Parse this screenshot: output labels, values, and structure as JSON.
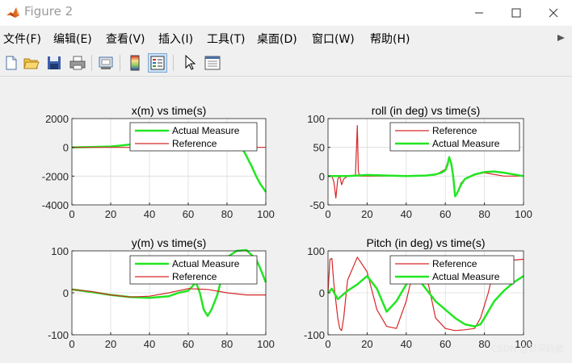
{
  "window": {
    "title": "Figure 2"
  },
  "menu": [
    "文件(F)",
    "编辑(E)",
    "查看(V)",
    "插入(I)",
    "工具(T)",
    "桌面(D)",
    "窗口(W)",
    "帮助(H)"
  ],
  "toolbar": {
    "icons": [
      "new-figure-icon",
      "open-file-icon",
      "save-icon",
      "print-icon",
      "print-preview-icon",
      "colorbar-icon",
      "legend-icon",
      "pointer-icon",
      "property-inspector-icon"
    ],
    "active": "legend-icon"
  },
  "colors": {
    "actual": "#22e622",
    "reference": "#d62728",
    "axes_bg": "#ffffff",
    "grid": "#dcdcdc"
  },
  "watermark": "CSDN @贝深码侬",
  "chart_data": [
    {
      "type": "line",
      "title": "x(m) vs time(s)",
      "xlim": [
        0,
        100
      ],
      "ylim": [
        -4000,
        2000
      ],
      "xticks": [
        0,
        20,
        40,
        60,
        80,
        100
      ],
      "yticks": [
        -4000,
        -2000,
        0,
        2000
      ],
      "grid": true,
      "legend_position": "top-right",
      "series": [
        {
          "name": "Actual Measure",
          "color": "#22e622",
          "width": 2.5,
          "x": [
            0,
            10,
            20,
            25,
            30,
            35,
            40,
            50,
            60,
            70,
            80,
            85,
            88,
            90,
            93,
            95,
            97,
            100
          ],
          "y": [
            0,
            20,
            60,
            120,
            200,
            160,
            80,
            20,
            0,
            0,
            0,
            0,
            -100,
            -600,
            -1400,
            -2000,
            -2500,
            -3100
          ]
        },
        {
          "name": "Reference",
          "color": "#d62728",
          "width": 1.2,
          "x": [
            0,
            20,
            40,
            60,
            80,
            100
          ],
          "y": [
            0,
            0,
            0,
            0,
            0,
            0
          ]
        }
      ]
    },
    {
      "type": "line",
      "title": "roll (in deg) vs time(s)",
      "xlim": [
        0,
        100
      ],
      "ylim": [
        -50,
        100
      ],
      "xticks": [
        0,
        20,
        40,
        60,
        80,
        100
      ],
      "yticks": [
        -50,
        0,
        50,
        100
      ],
      "grid": true,
      "legend_position": "top-right",
      "series": [
        {
          "name": "Reference",
          "color": "#d62728",
          "width": 1.2,
          "x": [
            0,
            2,
            3,
            4,
            5,
            6,
            7,
            8,
            10,
            14,
            15,
            15.5,
            16,
            20,
            40,
            55,
            60,
            61,
            62,
            63,
            64,
            65,
            66,
            68,
            70,
            75,
            80,
            90,
            100
          ],
          "y": [
            0,
            0,
            -10,
            -38,
            -5,
            0,
            -15,
            -5,
            0,
            0,
            88,
            10,
            0,
            0,
            0,
            2,
            12,
            22,
            30,
            25,
            0,
            -35,
            -30,
            -12,
            -5,
            2,
            6,
            0,
            0
          ]
        },
        {
          "name": "Actual Measure",
          "color": "#22e622",
          "width": 2.5,
          "x": [
            0,
            5,
            10,
            15,
            20,
            30,
            40,
            50,
            55,
            58,
            60,
            61,
            62,
            63,
            64,
            65,
            66,
            68,
            70,
            75,
            80,
            85,
            90,
            95,
            100
          ],
          "y": [
            0,
            0,
            0,
            1,
            2,
            1,
            0,
            1,
            3,
            6,
            10,
            18,
            33,
            22,
            0,
            -35,
            -30,
            -15,
            -5,
            3,
            7,
            8,
            6,
            3,
            0
          ]
        }
      ]
    },
    {
      "type": "line",
      "title": "y(m) vs time(s)",
      "xlim": [
        0,
        100
      ],
      "ylim": [
        -100,
        100
      ],
      "xticks": [
        0,
        20,
        40,
        60,
        80,
        100
      ],
      "yticks": [
        -100,
        0,
        100
      ],
      "grid": true,
      "legend_position": "top-right",
      "series": [
        {
          "name": "Actual Measure",
          "color": "#22e622",
          "width": 2.5,
          "x": [
            0,
            10,
            20,
            30,
            40,
            50,
            55,
            60,
            62,
            64,
            66,
            68,
            70,
            72,
            75,
            78,
            80,
            85,
            90,
            95,
            97,
            100
          ],
          "y": [
            8,
            2,
            -5,
            -10,
            -12,
            -8,
            0,
            5,
            15,
            25,
            0,
            -40,
            -55,
            -40,
            -5,
            50,
            85,
            100,
            102,
            80,
            60,
            25
          ]
        },
        {
          "name": "Reference",
          "color": "#d62728",
          "width": 1.2,
          "x": [
            0,
            10,
            20,
            30,
            40,
            50,
            60,
            70,
            80,
            90,
            100
          ],
          "y": [
            8,
            3,
            -5,
            -10,
            -8,
            0,
            10,
            8,
            0,
            -5,
            -5
          ]
        }
      ]
    },
    {
      "type": "line",
      "title": "Pitch (in deg) vs time(s)",
      "xlim": [
        0,
        100
      ],
      "ylim": [
        -100,
        100
      ],
      "xticks": [
        0,
        20,
        40,
        60,
        80,
        100
      ],
      "yticks": [
        -100,
        0,
        100
      ],
      "grid": true,
      "legend_position": "top-right",
      "series": [
        {
          "name": "Reference",
          "color": "#d62728",
          "width": 1.2,
          "x": [
            0,
            1,
            2,
            3,
            5,
            6,
            7,
            8,
            10,
            15,
            20,
            25,
            30,
            35,
            40,
            45,
            50,
            55,
            60,
            65,
            70,
            75,
            78,
            82,
            85,
            87,
            88,
            90,
            95,
            100
          ],
          "y": [
            0,
            80,
            82,
            20,
            -60,
            -85,
            -90,
            -60,
            30,
            85,
            50,
            -40,
            -80,
            -85,
            -20,
            80,
            50,
            -60,
            -85,
            -90,
            -88,
            -85,
            -60,
            0,
            60,
            75,
            80,
            78,
            78,
            80
          ]
        },
        {
          "name": "Actual Measure",
          "color": "#22e622",
          "width": 2.5,
          "x": [
            0,
            2,
            5,
            10,
            15,
            20,
            25,
            30,
            35,
            40,
            45,
            50,
            55,
            60,
            65,
            70,
            75,
            78,
            80,
            85,
            90,
            95,
            100
          ],
          "y": [
            0,
            10,
            -15,
            5,
            20,
            40,
            10,
            -45,
            -20,
            20,
            40,
            10,
            -20,
            -40,
            -60,
            -75,
            -80,
            -75,
            -60,
            -20,
            5,
            25,
            40
          ]
        }
      ]
    }
  ]
}
